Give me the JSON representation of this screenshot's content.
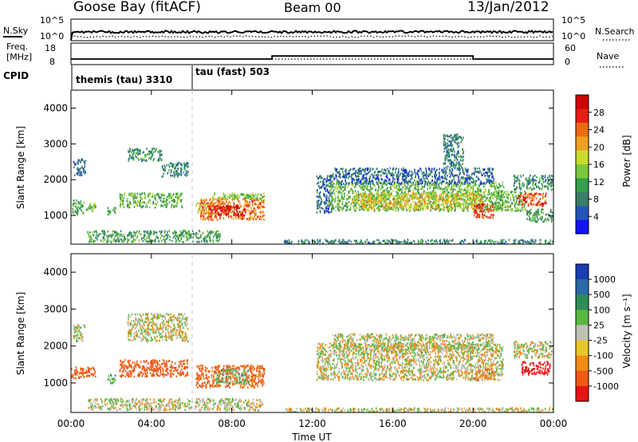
{
  "header": {
    "station": "Goose Bay (fitACF)",
    "beam": "Beam 00",
    "date": "13/Jan/2012"
  },
  "status_panels": {
    "nsky_label": "N.Sky",
    "nsearch_label": "N.Search",
    "noise_ticks": [
      "10^5",
      "10^0"
    ],
    "freq_label_line1": "Freq.",
    "freq_label_line2": "[MHz]",
    "freq_ticks": [
      "18",
      "8"
    ],
    "nave_label": "Nave",
    "nave_ticks": [
      "60",
      "0"
    ],
    "cpid_label": "CPID",
    "cpid_entries": [
      {
        "name": "themis (tau) 3310",
        "start_hour": 0
      },
      {
        "name": "tau (fast) 503",
        "start_hour": 6
      }
    ],
    "freq_mhz": [
      {
        "hour": 0,
        "value": 10.6
      },
      {
        "hour": 0.2,
        "value": 10.6
      },
      {
        "hour": 10,
        "value": 10.6
      },
      {
        "hour": 10,
        "value": 12.0
      },
      {
        "hour": 20,
        "value": 12.0
      },
      {
        "hour": 20,
        "value": 10.6
      },
      {
        "hour": 24,
        "value": 10.6
      }
    ]
  },
  "time_axis": {
    "label": "Time UT",
    "ticks": [
      "00:00",
      "04:00",
      "08:00",
      "12:00",
      "16:00",
      "20:00",
      "00:00"
    ]
  },
  "colorbars": {
    "power": {
      "label": "Power [dB]",
      "ticks": [
        "4",
        "8",
        "12",
        "16",
        "20",
        "24",
        "28"
      ],
      "colors": [
        "#1414f0",
        "#2255b8",
        "#3b7e6a",
        "#36a04a",
        "#7cc83c",
        "#c8dc2a",
        "#f0a020",
        "#f06a14",
        "#e81c14",
        "#d00000"
      ]
    },
    "velocity": {
      "label": "Velocity [m s⁻¹]",
      "ticks": [
        "1000",
        "500",
        "100",
        "25",
        "-25",
        "-100",
        "-500",
        "-1000"
      ],
      "colors": [
        "#1c3cb4",
        "#2a68a8",
        "#2e8c58",
        "#58b840",
        "#c0c0b8",
        "#e8c828",
        "#f08c14",
        "#f05a14",
        "#e81414"
      ]
    }
  },
  "chart_data": [
    {
      "type": "heatmap",
      "title": "Power",
      "xlabel": "Time UT",
      "ylabel": "Slant Range [km]",
      "xlim": [
        0,
        24
      ],
      "ylim": [
        200,
        4500
      ],
      "yticks": [
        1000,
        2000,
        3000,
        4000
      ],
      "colorbar": {
        "label": "Power [dB]",
        "range": [
          0,
          30
        ]
      },
      "regions": [
        {
          "t0": 0.0,
          "t1": 0.6,
          "r0": 1050,
          "r1": 1450,
          "value": 10
        },
        {
          "t0": 0.6,
          "t1": 1.2,
          "r0": 1150,
          "r1": 1400,
          "value": 12
        },
        {
          "t0": 0.1,
          "t1": 0.7,
          "r0": 2150,
          "r1": 2600,
          "value": 6
        },
        {
          "t0": 1.8,
          "t1": 2.2,
          "r0": 1000,
          "r1": 1250,
          "value": 10
        },
        {
          "t0": 2.8,
          "t1": 4.5,
          "r0": 2550,
          "r1": 2900,
          "value": 9
        },
        {
          "t0": 4.5,
          "t1": 5.8,
          "r0": 2100,
          "r1": 2500,
          "value": 8
        },
        {
          "t0": 2.4,
          "t1": 5.5,
          "r0": 1250,
          "r1": 1650,
          "value": 12
        },
        {
          "t0": 6.2,
          "t1": 7.0,
          "r0": 1050,
          "r1": 1400,
          "value": 16
        },
        {
          "t0": 6.4,
          "t1": 9.6,
          "r0": 900,
          "r1": 1500,
          "value": 22
        },
        {
          "t0": 6.8,
          "t1": 8.6,
          "r0": 1000,
          "r1": 1300,
          "value": 27
        },
        {
          "t0": 7.0,
          "t1": 9.6,
          "r0": 1450,
          "r1": 1650,
          "value": 13
        },
        {
          "t0": 0.8,
          "t1": 7.4,
          "r0": 280,
          "r1": 600,
          "value": 10
        },
        {
          "t0": 12.2,
          "t1": 13.0,
          "r0": 1100,
          "r1": 2150,
          "value": 6
        },
        {
          "t0": 12.8,
          "t1": 21.5,
          "r0": 1150,
          "r1": 1950,
          "value": 12
        },
        {
          "t0": 13.0,
          "t1": 21.0,
          "r0": 1900,
          "r1": 2350,
          "value": 6
        },
        {
          "t0": 14.0,
          "t1": 20.5,
          "r0": 1200,
          "r1": 1650,
          "value": 18
        },
        {
          "t0": 18.5,
          "t1": 19.5,
          "r0": 2300,
          "r1": 3300,
          "value": 8
        },
        {
          "t0": 20.0,
          "t1": 21.0,
          "r0": 950,
          "r1": 1350,
          "value": 25
        },
        {
          "t0": 21.0,
          "t1": 22.6,
          "r0": 1150,
          "r1": 1700,
          "value": 12
        },
        {
          "t0": 22.2,
          "t1": 23.6,
          "r0": 1300,
          "r1": 1650,
          "value": 24
        },
        {
          "t0": 22.0,
          "t1": 24.0,
          "r0": 1750,
          "r1": 2150,
          "value": 9
        },
        {
          "t0": 22.6,
          "t1": 24.0,
          "r0": 850,
          "r1": 1200,
          "value": 10
        },
        {
          "t0": 10.5,
          "t1": 24.0,
          "r0": 200,
          "r1": 350,
          "value": 8
        }
      ]
    },
    {
      "type": "heatmap",
      "title": "Velocity",
      "xlabel": "Time UT",
      "ylabel": "Slant Range [km]",
      "xlim": [
        0,
        24
      ],
      "ylim": [
        200,
        4500
      ],
      "yticks": [
        1000,
        2000,
        3000,
        4000
      ],
      "colorbar": {
        "label": "Velocity [m s⁻¹]",
        "range": [
          -1000,
          1000
        ]
      },
      "regions": [
        {
          "t0": 0.0,
          "t1": 1.2,
          "r0": 1150,
          "r1": 1450,
          "value": -200
        },
        {
          "t0": 0.1,
          "t1": 0.7,
          "r0": 2150,
          "r1": 2600,
          "value": 0
        },
        {
          "t0": 1.8,
          "t1": 2.2,
          "r0": 1000,
          "r1": 1250,
          "value": 80
        },
        {
          "t0": 2.8,
          "t1": 5.8,
          "r0": 2150,
          "r1": 2900,
          "value": 0
        },
        {
          "t0": 2.4,
          "t1": 5.8,
          "r0": 1200,
          "r1": 1650,
          "value": -300
        },
        {
          "t0": 6.2,
          "t1": 9.6,
          "r0": 900,
          "r1": 1500,
          "value": -150
        },
        {
          "t0": 7.2,
          "t1": 8.8,
          "r0": 1000,
          "r1": 1400,
          "value": 60
        },
        {
          "t0": 0.8,
          "t1": 9.5,
          "r0": 280,
          "r1": 600,
          "value": 5
        },
        {
          "t0": 12.2,
          "t1": 21.5,
          "r0": 1100,
          "r1": 2100,
          "value": 0
        },
        {
          "t0": 13.0,
          "t1": 21.0,
          "r0": 1900,
          "r1": 2350,
          "value": 0
        },
        {
          "t0": 20.0,
          "t1": 21.0,
          "r0": 1100,
          "r1": 1400,
          "value": -80
        },
        {
          "t0": 22.4,
          "t1": 23.8,
          "r0": 1250,
          "r1": 1600,
          "value": -600
        },
        {
          "t0": 22.0,
          "t1": 24.0,
          "r0": 1700,
          "r1": 2150,
          "value": 0
        },
        {
          "t0": 10.5,
          "t1": 24.0,
          "r0": 200,
          "r1": 350,
          "value": 0
        }
      ]
    }
  ]
}
